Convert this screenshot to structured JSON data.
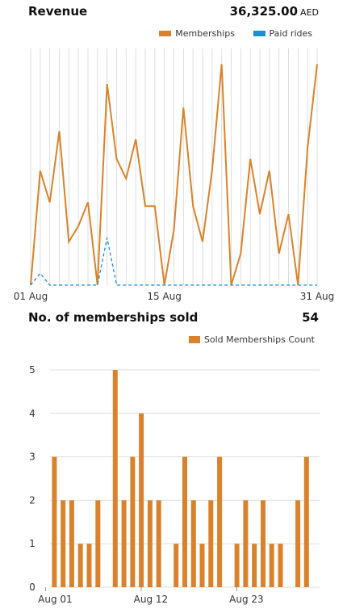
{
  "revenue": {
    "title": "Revenue",
    "amount": "36,325.00",
    "currency": "AED"
  },
  "memberships": {
    "title": "No. of memberships sold",
    "count": "54"
  },
  "colors": {
    "memberships": "#d9822b",
    "paid_rides": "#1a8fd8",
    "grid": "#dddddd"
  },
  "chart_data": [
    {
      "type": "line",
      "title": "",
      "x": [
        "01 Aug",
        "02 Aug",
        "03 Aug",
        "04 Aug",
        "05 Aug",
        "06 Aug",
        "07 Aug",
        "08 Aug",
        "09 Aug",
        "10 Aug",
        "11 Aug",
        "12 Aug",
        "13 Aug",
        "14 Aug",
        "15 Aug",
        "16 Aug",
        "17 Aug",
        "18 Aug",
        "19 Aug",
        "20 Aug",
        "21 Aug",
        "22 Aug",
        "23 Aug",
        "24 Aug",
        "25 Aug",
        "26 Aug",
        "27 Aug",
        "28 Aug",
        "29 Aug",
        "30 Aug",
        "31 Aug"
      ],
      "x_tick_labels": [
        "01 Aug",
        "15 Aug",
        "31 Aug"
      ],
      "series": [
        {
          "name": "Memberships",
          "style": "solid",
          "values": [
            0,
            2.9,
            2.1,
            3.9,
            1.1,
            1.5,
            2.1,
            0,
            5.1,
            3.2,
            2.7,
            3.7,
            2.0,
            2.0,
            0,
            1.4,
            4.5,
            2.0,
            1.1,
            2.9,
            5.6,
            0,
            0.8,
            3.2,
            1.8,
            2.9,
            0.8,
            1.8,
            0,
            3.5,
            5.6
          ]
        },
        {
          "name": "Paid rides",
          "style": "dashed",
          "values": [
            0,
            0.3,
            0,
            0,
            0,
            0,
            0,
            0,
            1.2,
            0,
            0,
            0,
            0,
            0,
            0,
            0,
            0,
            0,
            0,
            0,
            0,
            0,
            0,
            0,
            0,
            0,
            0,
            0,
            0,
            0,
            0
          ]
        }
      ],
      "ylim": [
        0,
        6
      ],
      "grid": "vertical",
      "legend": "top-right"
    },
    {
      "type": "bar",
      "title": "",
      "categories": [
        "Aug 01",
        "Aug 02",
        "Aug 03",
        "Aug 04",
        "Aug 05",
        "Aug 06",
        "Aug 07",
        "Aug 08",
        "Aug 09",
        "Aug 10",
        "Aug 11",
        "Aug 12",
        "Aug 13",
        "Aug 14",
        "Aug 15",
        "Aug 16",
        "Aug 17",
        "Aug 18",
        "Aug 19",
        "Aug 20",
        "Aug 21",
        "Aug 22",
        "Aug 23",
        "Aug 24",
        "Aug 25",
        "Aug 26",
        "Aug 27",
        "Aug 28",
        "Aug 29",
        "Aug 30",
        "Aug 31"
      ],
      "x_tick_labels": [
        "Aug 01",
        "Aug 12",
        "Aug 23"
      ],
      "series": [
        {
          "name": "Sold Memberships Count",
          "values": [
            3,
            2,
            2,
            1,
            1,
            2,
            0,
            5,
            2,
            3,
            4,
            2,
            2,
            0,
            1,
            3,
            2,
            1,
            2,
            3,
            0,
            1,
            2,
            1,
            2,
            1,
            1,
            0,
            2,
            3,
            0
          ]
        }
      ],
      "y_ticks": [
        "0",
        "1",
        "2",
        "3",
        "4",
        "5"
      ],
      "ylim": [
        0,
        5
      ],
      "grid": "horizontal",
      "legend": "top-right"
    }
  ]
}
